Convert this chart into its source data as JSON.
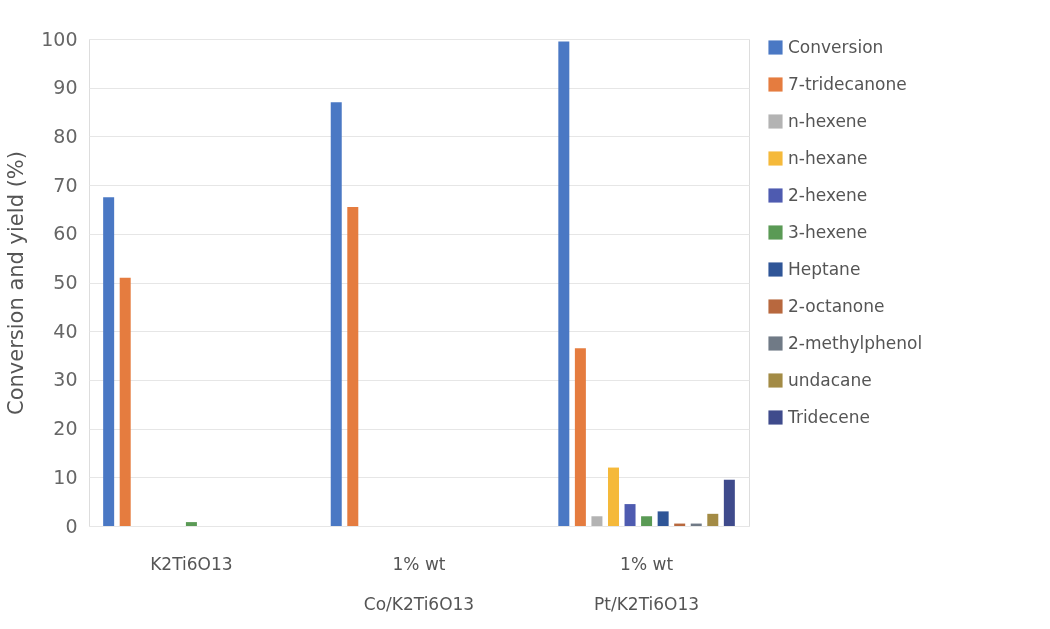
{
  "chart_data": {
    "type": "bar",
    "ylabel": "Conversion and yield (%)",
    "categories": [
      "K2Ti6O13",
      "1% wt\nCo/K2Ti6O13",
      "1% wt\nPt/K2Ti6O13"
    ],
    "series": [
      {
        "name": "Conversion",
        "color": "#4a78c4",
        "values": [
          67.5,
          87,
          99.5
        ]
      },
      {
        "name": "7-tridecanone",
        "color": "#e57c3f",
        "values": [
          51,
          65.5,
          36.5
        ]
      },
      {
        "name": "n-hexene",
        "color": "#b3b3b3",
        "values": [
          null,
          null,
          2
        ]
      },
      {
        "name": "n-hexane",
        "color": "#f5b93a",
        "values": [
          null,
          null,
          12
        ]
      },
      {
        "name": "2-hexene",
        "color": "#4e5bb0",
        "values": [
          null,
          null,
          4.5
        ]
      },
      {
        "name": "3-hexene",
        "color": "#5a9a55",
        "values": [
          0.8,
          null,
          2
        ]
      },
      {
        "name": "Heptane",
        "color": "#2f5597",
        "values": [
          null,
          null,
          3
        ]
      },
      {
        "name": "2-octanone",
        "color": "#b8683e",
        "values": [
          null,
          null,
          0.5
        ]
      },
      {
        "name": "2-methylphenol",
        "color": "#707a86",
        "values": [
          null,
          null,
          0.5
        ]
      },
      {
        "name": "undacane",
        "color": "#a38b45",
        "values": [
          null,
          null,
          2.5
        ]
      },
      {
        "name": "Tridecene",
        "color": "#3f4b8c",
        "values": [
          null,
          null,
          9.5
        ]
      }
    ],
    "ylim": [
      0,
      100
    ],
    "yticks": [
      0,
      10,
      20,
      30,
      40,
      50,
      60,
      70,
      80,
      90,
      100
    ],
    "grid": "y",
    "legend": "right"
  }
}
